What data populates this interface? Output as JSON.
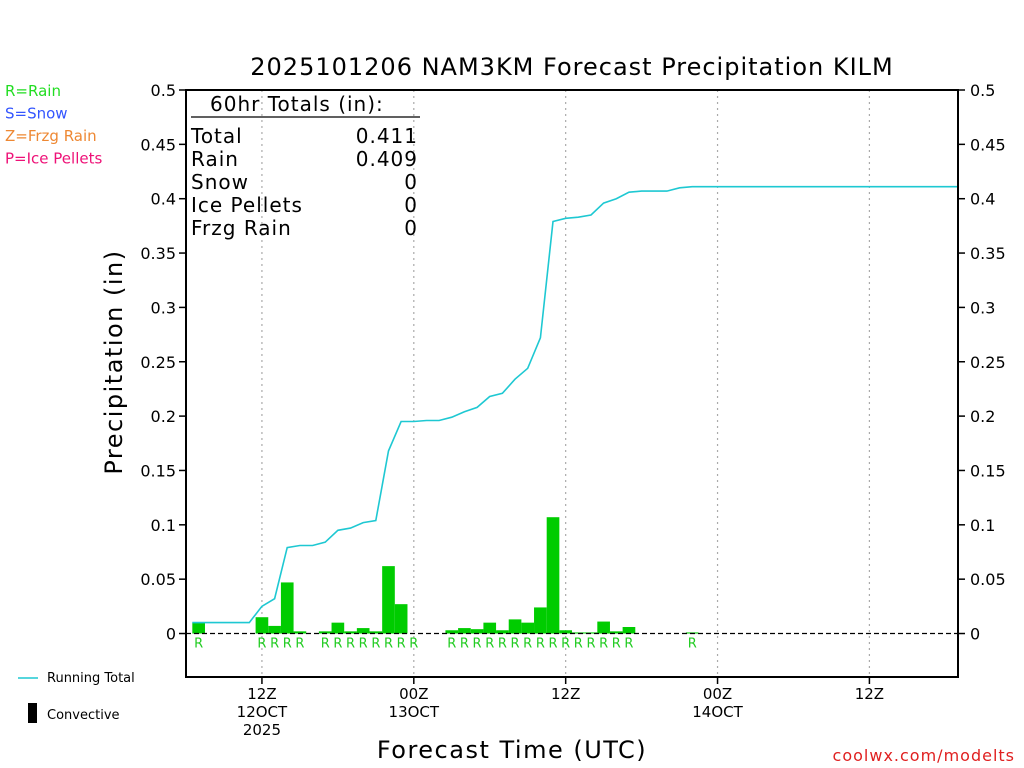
{
  "chart_data": {
    "type": "bar",
    "title": "2025101206 NAM3KM Forecast Precipitation KILM",
    "ylabel": "Precipitation (in)",
    "xlabel": "Forecast Time (UTC)",
    "ylim": [
      -0.04,
      0.5
    ],
    "xlim": [
      5,
      66
    ],
    "yticks": [
      {
        "value": 0.5,
        "label": "0.5"
      },
      {
        "value": 0.45,
        "label": "0.45"
      },
      {
        "value": 0.4,
        "label": "0.4"
      },
      {
        "value": 0.35,
        "label": "0.35"
      },
      {
        "value": 0.3,
        "label": "0.3"
      },
      {
        "value": 0.25,
        "label": "0.25"
      },
      {
        "value": 0.2,
        "label": "0.2"
      },
      {
        "value": 0.15,
        "label": "0.15"
      },
      {
        "value": 0.1,
        "label": "0.1"
      },
      {
        "value": 0.05,
        "label": "0.05"
      },
      {
        "value": 0,
        "label": "0"
      }
    ],
    "xticks": [
      {
        "value": 11,
        "lines": [
          "12Z",
          "12OCT",
          "2025"
        ]
      },
      {
        "value": 23,
        "lines": [
          "00Z",
          "13OCT"
        ]
      },
      {
        "value": 35,
        "lines": [
          "12Z"
        ]
      },
      {
        "value": 47,
        "lines": [
          "00Z",
          "14OCT"
        ]
      },
      {
        "value": 59,
        "lines": [
          "12Z"
        ]
      }
    ],
    "gridlines": [
      11,
      23,
      35,
      47,
      59
    ],
    "hours": [
      6,
      7,
      8,
      9,
      10,
      11,
      12,
      13,
      14,
      15,
      16,
      17,
      18,
      19,
      20,
      21,
      22,
      23,
      24,
      25,
      26,
      27,
      28,
      29,
      30,
      31,
      32,
      33,
      34,
      35,
      36,
      37,
      38,
      39,
      40,
      41,
      42,
      43,
      44,
      45,
      46,
      47,
      48,
      49,
      50,
      51,
      52,
      53,
      54,
      55,
      56,
      57,
      58,
      59,
      60,
      61,
      62,
      63,
      64,
      65,
      66
    ],
    "series": [
      {
        "name": "Convective",
        "kind": "bars",
        "color": "#00cc00",
        "values": [
          0.01,
          0,
          0,
          0,
          0,
          0.015,
          0.007,
          0.047,
          0.002,
          0,
          0.002,
          0.01,
          0.002,
          0.005,
          0.002,
          0.062,
          0.027,
          0,
          0,
          0,
          0.003,
          0.005,
          0.004,
          0.01,
          0.003,
          0.013,
          0.01,
          0.024,
          0.107,
          0.003,
          0.001,
          0.001,
          0.011,
          0.002,
          0.006,
          0,
          0,
          0,
          0,
          0.001,
          0,
          0,
          0,
          0,
          0,
          0,
          0,
          0,
          0,
          0,
          0,
          0,
          0,
          0,
          0,
          0,
          0,
          0,
          0,
          0,
          0
        ]
      },
      {
        "name": "Running Total",
        "kind": "line",
        "color": "#1ec8d2",
        "values": [
          0.01,
          0.01,
          0.01,
          0.01,
          0.01,
          0.025,
          0.032,
          0.079,
          0.081,
          0.081,
          0.084,
          0.095,
          0.097,
          0.102,
          0.104,
          0.168,
          0.195,
          0.195,
          0.196,
          0.196,
          0.199,
          0.204,
          0.208,
          0.218,
          0.221,
          0.234,
          0.244,
          0.272,
          0.379,
          0.382,
          0.383,
          0.385,
          0.396,
          0.4,
          0.406,
          0.407,
          0.407,
          0.407,
          0.41,
          0.411,
          0.411,
          0.411,
          0.411,
          0.411,
          0.411,
          0.411,
          0.411,
          0.411,
          0.411,
          0.411,
          0.411,
          0.411,
          0.411,
          0.411,
          0.411,
          0.411,
          0.411,
          0.411,
          0.411,
          0.411,
          0.411
        ]
      }
    ],
    "ptype_markers": [
      {
        "hour": 6,
        "label": "R"
      },
      {
        "hour": 11,
        "label": "R"
      },
      {
        "hour": 12,
        "label": "R"
      },
      {
        "hour": 13,
        "label": "R"
      },
      {
        "hour": 14,
        "label": "R"
      },
      {
        "hour": 16,
        "label": "R"
      },
      {
        "hour": 17,
        "label": "R"
      },
      {
        "hour": 18,
        "label": "R"
      },
      {
        "hour": 19,
        "label": "R"
      },
      {
        "hour": 20,
        "label": "R"
      },
      {
        "hour": 21,
        "label": "R"
      },
      {
        "hour": 22,
        "label": "R"
      },
      {
        "hour": 23,
        "label": "R"
      },
      {
        "hour": 26,
        "label": "R"
      },
      {
        "hour": 27,
        "label": "R"
      },
      {
        "hour": 28,
        "label": "R"
      },
      {
        "hour": 29,
        "label": "R"
      },
      {
        "hour": 30,
        "label": "R"
      },
      {
        "hour": 31,
        "label": "R"
      },
      {
        "hour": 32,
        "label": "R"
      },
      {
        "hour": 33,
        "label": "R"
      },
      {
        "hour": 34,
        "label": "R"
      },
      {
        "hour": 35,
        "label": "R"
      },
      {
        "hour": 36,
        "label": "R"
      },
      {
        "hour": 37,
        "label": "R"
      },
      {
        "hour": 38,
        "label": "R"
      },
      {
        "hour": 39,
        "label": "R"
      },
      {
        "hour": 40,
        "label": "R"
      },
      {
        "hour": 45,
        "label": "R"
      }
    ],
    "ptype_legend": [
      {
        "text": "R=Rain",
        "color": "#22dd22"
      },
      {
        "text": "S=Snow",
        "color": "#3355ff"
      },
      {
        "text": "Z=Frzg Rain",
        "color": "#ee8833"
      },
      {
        "text": "P=Ice Pellets",
        "color": "#ee1177"
      }
    ],
    "legend": {
      "running_total": "Running Total",
      "convective": "Convective"
    },
    "totals_table": {
      "header": "60hr Totals (in):",
      "rows": [
        {
          "label": "Total",
          "value": "0.411"
        },
        {
          "label": "Rain",
          "value": "0.409"
        },
        {
          "label": "Snow",
          "value": "0"
        },
        {
          "label": "Ice Pellets",
          "value": "0"
        },
        {
          "label": "Frzg Rain",
          "value": "0"
        }
      ]
    },
    "credit": "coolwx.com/modelts",
    "credit_color": "#e02020"
  }
}
